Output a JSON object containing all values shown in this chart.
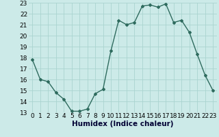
{
  "x": [
    0,
    1,
    2,
    3,
    4,
    5,
    6,
    7,
    8,
    9,
    10,
    11,
    12,
    13,
    14,
    15,
    16,
    17,
    18,
    19,
    20,
    21,
    22,
    23
  ],
  "y": [
    17.8,
    16.0,
    15.8,
    14.8,
    14.2,
    13.1,
    13.1,
    13.3,
    14.7,
    15.1,
    18.6,
    21.4,
    21.0,
    21.2,
    22.7,
    22.8,
    22.6,
    22.9,
    21.2,
    21.4,
    20.3,
    18.3,
    16.4,
    15.0
  ],
  "xlabel": "Humidex (Indice chaleur)",
  "xlim": [
    -0.5,
    23.5
  ],
  "ylim": [
    13,
    23
  ],
  "yticks": [
    13,
    14,
    15,
    16,
    17,
    18,
    19,
    20,
    21,
    22,
    23
  ],
  "xticks": [
    0,
    1,
    2,
    3,
    4,
    5,
    6,
    7,
    8,
    9,
    10,
    11,
    12,
    13,
    14,
    15,
    16,
    17,
    18,
    19,
    20,
    21,
    22,
    23
  ],
  "line_color": "#2e6b5e",
  "marker": "D",
  "marker_size": 2.0,
  "bg_color": "#cceae8",
  "grid_color": "#aad4d0",
  "xlabel_fontsize": 7.5,
  "tick_fontsize": 6.5
}
